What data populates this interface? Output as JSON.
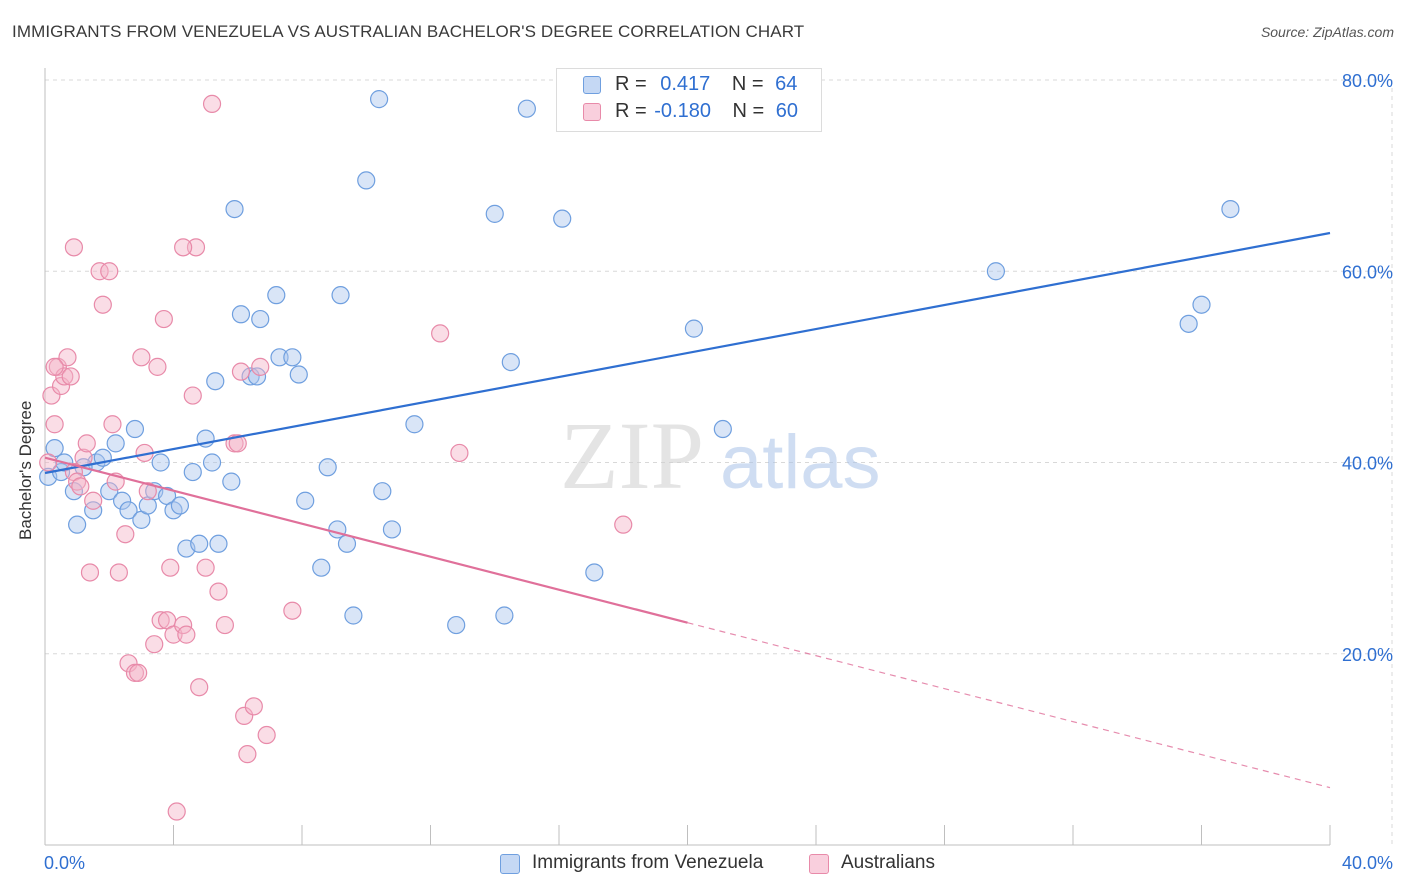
{
  "title": "IMMIGRANTS FROM VENEZUELA VS AUSTRALIAN BACHELOR'S DEGREE CORRELATION CHART",
  "source": "Source: ZipAtlas.com",
  "watermark": {
    "zip": "ZIP",
    "atlas": "atlas"
  },
  "colors": {
    "blue": "#2f6fd1",
    "blue_fill": "#aac6ee",
    "blue_stroke": "#6f9fdf",
    "pink": "#e0709a",
    "pink_fill": "#f5b3c8",
    "pink_stroke": "#e88aa9",
    "grid": "#d8d8d8"
  },
  "legend": {
    "rows": [
      {
        "r_label": "R =",
        "r_value": "0.417",
        "n_label": "N =",
        "n_value": "64"
      },
      {
        "r_label": "R =",
        "r_value": "-0.180",
        "n_label": "N =",
        "n_value": "60"
      }
    ]
  },
  "chart_data": {
    "type": "scatter",
    "title": "IMMIGRANTS FROM VENEZUELA VS AUSTRALIAN BACHELOR'S DEGREE CORRELATION CHART",
    "xlabel": "",
    "ylabel": "Bachelor's Degree",
    "xlim": [
      0,
      40
    ],
    "ylim": [
      0,
      80
    ],
    "x_tick_labels": [
      "0.0%",
      "40.0%"
    ],
    "y_tick_labels": [
      "20.0%",
      "40.0%",
      "60.0%",
      "80.0%"
    ],
    "y_ticks": [
      20,
      40,
      60,
      80
    ],
    "x_minor_ticks": [
      4,
      8,
      12,
      16,
      20,
      24,
      28,
      32,
      36,
      40
    ],
    "series": [
      {
        "name": "Immigrants from Venezuela",
        "color": "blue",
        "R": 0.417,
        "N": 64,
        "trend": {
          "x0": 0,
          "y0": 38.9,
          "x1": 40,
          "y1": 64.0,
          "dashed_from": null
        },
        "points": [
          [
            0.1,
            38.5
          ],
          [
            0.3,
            41.5
          ],
          [
            0.5,
            39.0
          ],
          [
            0.6,
            40.0
          ],
          [
            0.9,
            37.0
          ],
          [
            1.0,
            33.5
          ],
          [
            1.5,
            35.0
          ],
          [
            1.6,
            40.0
          ],
          [
            1.8,
            40.5
          ],
          [
            2.0,
            37.0
          ],
          [
            2.2,
            42.0
          ],
          [
            2.4,
            36.0
          ],
          [
            2.6,
            35.0
          ],
          [
            2.8,
            43.5
          ],
          [
            3.0,
            34.0
          ],
          [
            3.2,
            35.5
          ],
          [
            3.4,
            37.0
          ],
          [
            3.6,
            40.0
          ],
          [
            3.8,
            36.5
          ],
          [
            4.0,
            35.0
          ],
          [
            4.2,
            35.5
          ],
          [
            4.4,
            31.0
          ],
          [
            4.6,
            39.0
          ],
          [
            4.8,
            31.5
          ],
          [
            5.0,
            42.5
          ],
          [
            5.2,
            40.0
          ],
          [
            5.3,
            48.5
          ],
          [
            5.4,
            31.5
          ],
          [
            5.8,
            38.0
          ],
          [
            5.9,
            66.5
          ],
          [
            6.1,
            55.5
          ],
          [
            6.4,
            49.0
          ],
          [
            6.6,
            49.0
          ],
          [
            6.7,
            55.0
          ],
          [
            7.2,
            57.5
          ],
          [
            7.3,
            51.0
          ],
          [
            7.7,
            51.0
          ],
          [
            7.9,
            49.2
          ],
          [
            8.1,
            36.0
          ],
          [
            8.6,
            29.0
          ],
          [
            8.8,
            39.5
          ],
          [
            9.1,
            33.0
          ],
          [
            9.2,
            57.5
          ],
          [
            9.4,
            31.5
          ],
          [
            9.6,
            24.0
          ],
          [
            10.0,
            69.5
          ],
          [
            10.4,
            78.0
          ],
          [
            10.5,
            37.0
          ],
          [
            10.8,
            33.0
          ],
          [
            11.5,
            44.0
          ],
          [
            12.8,
            23.0
          ],
          [
            14.0,
            66.0
          ],
          [
            14.3,
            24.0
          ],
          [
            14.5,
            50.5
          ],
          [
            15.0,
            77.0
          ],
          [
            16.1,
            65.5
          ],
          [
            17.1,
            28.5
          ],
          [
            20.2,
            54.0
          ],
          [
            21.1,
            43.5
          ],
          [
            29.6,
            60.0
          ],
          [
            35.6,
            54.5
          ],
          [
            36.0,
            56.5
          ],
          [
            36.9,
            66.5
          ],
          [
            1.2,
            39.5
          ]
        ]
      },
      {
        "name": "Australians",
        "color": "pink",
        "R": -0.18,
        "N": 60,
        "trend": {
          "x0": 0,
          "y0": 40.5,
          "x1": 40,
          "y1": 6.0,
          "dashed_from": 20
        },
        "points": [
          [
            0.1,
            40.0
          ],
          [
            0.2,
            47.0
          ],
          [
            0.3,
            44.0
          ],
          [
            0.4,
            50.0
          ],
          [
            0.5,
            48.0
          ],
          [
            0.6,
            49.0
          ],
          [
            0.7,
            51.0
          ],
          [
            0.8,
            49.0
          ],
          [
            0.9,
            39.0
          ],
          [
            1.0,
            38.0
          ],
          [
            1.1,
            37.5
          ],
          [
            1.2,
            40.5
          ],
          [
            1.4,
            28.5
          ],
          [
            1.5,
            36.0
          ],
          [
            1.7,
            60.0
          ],
          [
            1.8,
            56.5
          ],
          [
            2.0,
            60.0
          ],
          [
            2.1,
            44.0
          ],
          [
            2.2,
            38.0
          ],
          [
            2.3,
            28.5
          ],
          [
            2.5,
            32.5
          ],
          [
            2.6,
            19.0
          ],
          [
            2.8,
            18.0
          ],
          [
            2.9,
            18.0
          ],
          [
            3.0,
            51.0
          ],
          [
            3.1,
            41.0
          ],
          [
            3.2,
            37.0
          ],
          [
            3.4,
            21.0
          ],
          [
            3.5,
            50.0
          ],
          [
            3.6,
            23.5
          ],
          [
            3.7,
            55.0
          ],
          [
            3.8,
            23.5
          ],
          [
            3.9,
            29.0
          ],
          [
            4.0,
            22.0
          ],
          [
            4.1,
            3.5
          ],
          [
            4.3,
            23.0
          ],
          [
            4.4,
            22.0
          ],
          [
            4.6,
            47.0
          ],
          [
            4.7,
            62.5
          ],
          [
            4.8,
            16.5
          ],
          [
            5.0,
            29.0
          ],
          [
            5.2,
            77.5
          ],
          [
            5.4,
            26.5
          ],
          [
            5.6,
            23.0
          ],
          [
            5.9,
            42.0
          ],
          [
            6.0,
            42.0
          ],
          [
            6.1,
            49.5
          ],
          [
            6.2,
            13.5
          ],
          [
            6.3,
            9.5
          ],
          [
            6.5,
            14.5
          ],
          [
            6.7,
            50.0
          ],
          [
            6.9,
            11.5
          ],
          [
            7.7,
            24.5
          ],
          [
            12.3,
            53.5
          ],
          [
            12.9,
            41.0
          ],
          [
            18.0,
            33.5
          ],
          [
            0.9,
            62.5
          ],
          [
            0.3,
            50.0
          ],
          [
            1.3,
            42.0
          ],
          [
            4.3,
            62.5
          ]
        ]
      }
    ],
    "bottom_legend": [
      "Immigrants from Venezuela",
      "Australians"
    ]
  }
}
